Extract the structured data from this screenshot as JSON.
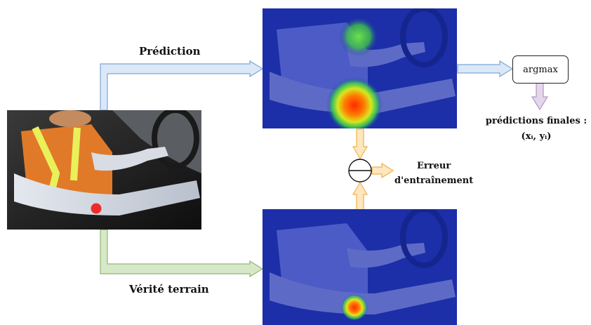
{
  "labels": {
    "prediction": "Prédiction",
    "ground_truth": "Vérité terrain",
    "error_line1": "Erreur",
    "error_line2": "d'entraînement",
    "argmax": "argmax",
    "final_line1": "prédictions finales :",
    "final_line2": "(xᵢ, yᵢ)"
  },
  "colors": {
    "blue_arrow": "#dbe8f7",
    "blue_stroke": "#7ea6d8",
    "green_arrow": "#d7e8c9",
    "green_stroke": "#90b870",
    "orange_arrow": "#fde7bf",
    "orange_stroke": "#f0b14a",
    "purple_arrow": "#e4d7ea",
    "purple_stroke": "#b197c2",
    "heatmap_bg": "#1c2ea8",
    "keypoint": "#ee2b2b"
  }
}
